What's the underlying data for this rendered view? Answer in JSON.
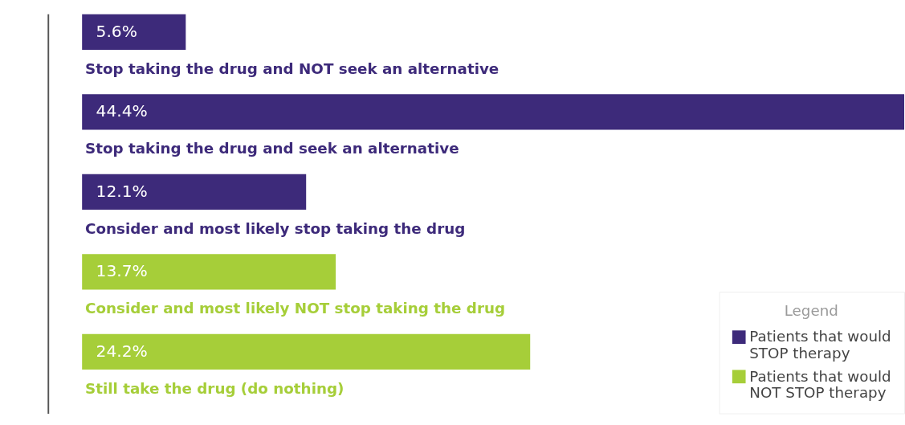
{
  "chart_data": {
    "type": "bar",
    "orientation": "horizontal",
    "data_labels": true,
    "legend": "bottom right",
    "legend_title": "Legend",
    "grid": false,
    "categories": [
      "Stop taking the drug and NOT seek an alternative",
      "Stop taking the drug and seek an alternative",
      "Consider and most likely stop taking the drug",
      "Consider and most likely NOT stop taking the drug",
      "Still take the drug (do nothing)"
    ],
    "series": [
      {
        "name": "Patients that would STOP therapy",
        "color": "#3d2a7a",
        "values": [
          5.6,
          44.4,
          12.1,
          null,
          null
        ],
        "value_labels": [
          "5.6%",
          "44.4%",
          "12.1%",
          null,
          null
        ]
      },
      {
        "name": "Patients that would NOT STOP therapy",
        "color": "#a6ce39",
        "values": [
          null,
          null,
          null,
          13.7,
          24.2
        ],
        "value_labels": [
          null,
          null,
          null,
          "13.7%",
          "24.2%"
        ]
      }
    ]
  }
}
